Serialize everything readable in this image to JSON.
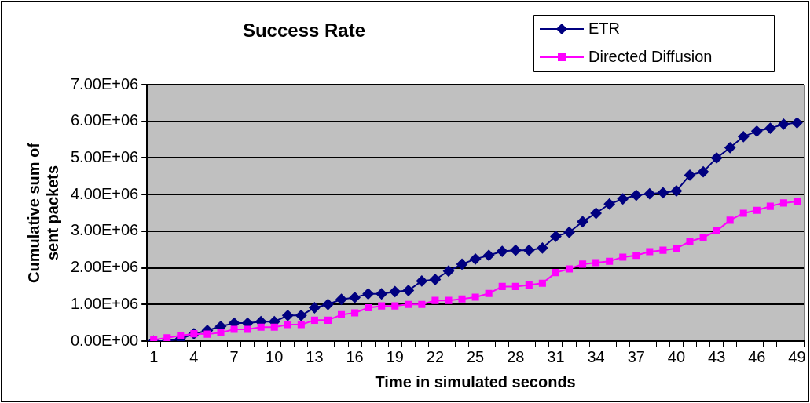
{
  "chart_data": {
    "type": "line",
    "title": "Success Rate",
    "xlabel": "Time in simulated seconds",
    "ylabel": "Cumulative sum of sent packets",
    "categories": [
      "1",
      null,
      null,
      "4",
      null,
      null,
      "7",
      null,
      null,
      "10",
      null,
      null,
      "13",
      null,
      null,
      "16",
      null,
      null,
      "19",
      null,
      null,
      "22",
      null,
      null,
      "25",
      null,
      null,
      "28",
      null,
      null,
      "31",
      null,
      null,
      "34",
      null,
      null,
      "37",
      null,
      null,
      "40",
      null,
      null,
      "43",
      null,
      null,
      "46",
      null,
      null,
      "49"
    ],
    "series": [
      {
        "name": "ETR",
        "color": "#000080",
        "marker": "diamond",
        "values": [
          0,
          0,
          60000,
          200000,
          290000,
          400000,
          490000,
          490000,
          530000,
          530000,
          700000,
          700000,
          910000,
          1000000,
          1140000,
          1190000,
          1290000,
          1290000,
          1350000,
          1380000,
          1640000,
          1680000,
          1910000,
          2100000,
          2240000,
          2340000,
          2450000,
          2480000,
          2480000,
          2540000,
          2860000,
          2970000,
          3260000,
          3490000,
          3740000,
          3880000,
          3980000,
          4020000,
          4050000,
          4100000,
          4530000,
          4620000,
          5000000,
          5280000,
          5580000,
          5730000,
          5810000,
          5920000,
          5960000
        ]
      },
      {
        "name": "Directed Diffusion",
        "color": "#ff00ff",
        "marker": "square",
        "values": [
          30000,
          90000,
          150000,
          200000,
          190000,
          230000,
          320000,
          320000,
          380000,
          380000,
          450000,
          450000,
          570000,
          570000,
          720000,
          770000,
          910000,
          960000,
          960000,
          1000000,
          1000000,
          1110000,
          1110000,
          1150000,
          1200000,
          1300000,
          1490000,
          1490000,
          1530000,
          1580000,
          1870000,
          1970000,
          2100000,
          2140000,
          2180000,
          2290000,
          2340000,
          2440000,
          2480000,
          2530000,
          2720000,
          2830000,
          3010000,
          3300000,
          3490000,
          3570000,
          3680000,
          3770000,
          3810000
        ]
      }
    ],
    "ylim": [
      0,
      7000000
    ],
    "yticks": [
      {
        "value": 0,
        "label": "0.00E+00"
      },
      {
        "value": 1000000,
        "label": "1.00E+06"
      },
      {
        "value": 2000000,
        "label": "2.00E+06"
      },
      {
        "value": 3000000,
        "label": "3.00E+06"
      },
      {
        "value": 4000000,
        "label": "4.00E+06"
      },
      {
        "value": 5000000,
        "label": "5.00E+06"
      },
      {
        "value": 6000000,
        "label": "6.00E+06"
      },
      {
        "value": 7000000,
        "label": "7.00E+06"
      }
    ],
    "grid": "y",
    "legend": "top right",
    "line_style": "solid"
  }
}
